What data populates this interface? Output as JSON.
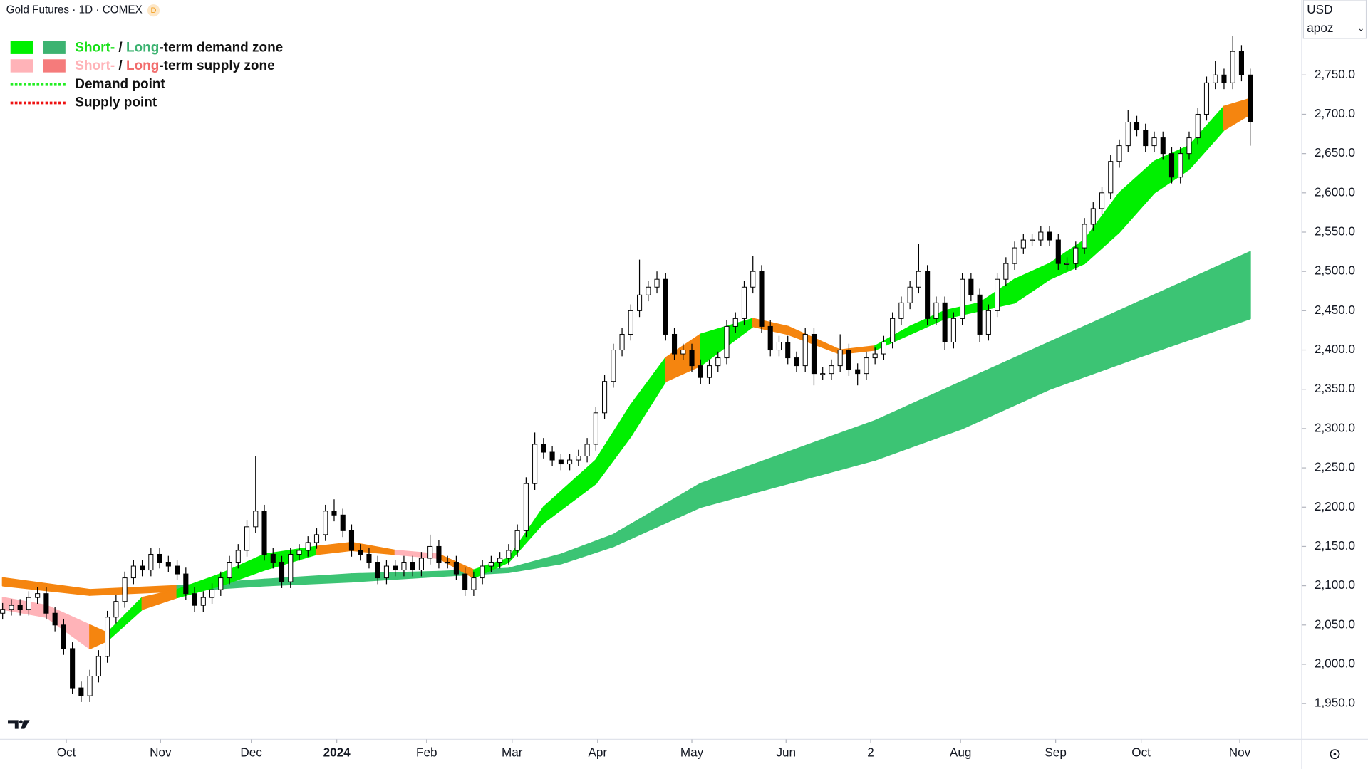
{
  "chart_data": {
    "type": "candlestick",
    "title": "Gold Futures · 1D · COMEX",
    "badge": "D",
    "currency": "USD",
    "scale_menu": "apoz",
    "ylim": [
      1904.5,
      2845.4
    ],
    "yticks": [
      {
        "value": 1950,
        "label": "1,950.0"
      },
      {
        "value": 2000,
        "label": "2,000.0"
      },
      {
        "value": 2050,
        "label": "2,050.0"
      },
      {
        "value": 2100,
        "label": "2,100.0"
      },
      {
        "value": 2150,
        "label": "2,150.0"
      },
      {
        "value": 2200,
        "label": "2,200.0"
      },
      {
        "value": 2250,
        "label": "2,250.0"
      },
      {
        "value": 2300,
        "label": "2,300.0"
      },
      {
        "value": 2350,
        "label": "2,350.0"
      },
      {
        "value": 2400,
        "label": "2,400.0"
      },
      {
        "value": 2450,
        "label": "2,450.0"
      },
      {
        "value": 2500,
        "label": "2,500.0"
      },
      {
        "value": 2550,
        "label": "2,550.0"
      },
      {
        "value": 2600,
        "label": "2,600.0"
      },
      {
        "value": 2650,
        "label": "2,650.0"
      },
      {
        "value": 2700,
        "label": "2,700.0"
      },
      {
        "value": 2750,
        "label": "2,750.0"
      }
    ],
    "xticks": [
      {
        "value": 7.3,
        "label": "Oct"
      },
      {
        "value": 18.1,
        "label": "Nov"
      },
      {
        "value": 28.5,
        "label": "Dec"
      },
      {
        "value": 38.3,
        "label": "2024"
      },
      {
        "value": 48.6,
        "label": "Feb"
      },
      {
        "value": 58.4,
        "label": "Mar"
      },
      {
        "value": 68.2,
        "label": "Apr"
      },
      {
        "value": 79,
        "label": "May"
      },
      {
        "value": 89.8,
        "label": "Jun"
      },
      {
        "value": 99.5,
        "label": "2"
      },
      {
        "value": 109.8,
        "label": "Aug"
      },
      {
        "value": 120.7,
        "label": "Sep"
      },
      {
        "value": 130.5,
        "label": "Oct"
      },
      {
        "value": 141.8,
        "label": "Nov"
      }
    ],
    "up_color": "#ffffff",
    "down_color": "#000000",
    "candles": [
      [
        2065,
        2078,
        2057,
        2070
      ],
      [
        2070,
        2083,
        2062,
        2075
      ],
      [
        2075,
        2083,
        2062,
        2070
      ],
      [
        2070,
        2093,
        2062,
        2085
      ],
      [
        2085,
        2098,
        2077,
        2090
      ],
      [
        2090,
        2098,
        2057,
        2065
      ],
      [
        2065,
        2073,
        2042,
        2050
      ],
      [
        2050,
        2058,
        2012,
        2020
      ],
      [
        2020,
        2028,
        1962,
        1970
      ],
      [
        1970,
        1978,
        1952,
        1960
      ],
      [
        1960,
        1993,
        1952,
        1985
      ],
      [
        1985,
        2018,
        1977,
        2010
      ],
      [
        2010,
        2068,
        2002,
        2060
      ],
      [
        2060,
        2088,
        2052,
        2080
      ],
      [
        2080,
        2118,
        2072,
        2110
      ],
      [
        2110,
        2133,
        2102,
        2125
      ],
      [
        2125,
        2133,
        2112,
        2120
      ],
      [
        2120,
        2148,
        2112,
        2140
      ],
      [
        2140,
        2148,
        2122,
        2130
      ],
      [
        2130,
        2138,
        2117,
        2125
      ],
      [
        2125,
        2133,
        2107,
        2115
      ],
      [
        2115,
        2123,
        2082,
        2090
      ],
      [
        2090,
        2098,
        2067,
        2075
      ],
      [
        2075,
        2093,
        2067,
        2085
      ],
      [
        2085,
        2103,
        2077,
        2095
      ],
      [
        2095,
        2118,
        2087,
        2110
      ],
      [
        2110,
        2138,
        2102,
        2130
      ],
      [
        2130,
        2153,
        2122,
        2145
      ],
      [
        2145,
        2183,
        2137,
        2175
      ],
      [
        2175,
        2265,
        2167,
        2195
      ],
      [
        2195,
        2203,
        2132,
        2140
      ],
      [
        2140,
        2148,
        2122,
        2130
      ],
      [
        2130,
        2138,
        2097,
        2105
      ],
      [
        2105,
        2148,
        2097,
        2140
      ],
      [
        2140,
        2153,
        2132,
        2145
      ],
      [
        2145,
        2163,
        2137,
        2155
      ],
      [
        2155,
        2173,
        2147,
        2165
      ],
      [
        2165,
        2203,
        2157,
        2195
      ],
      [
        2195,
        2210,
        2182,
        2190
      ],
      [
        2190,
        2198,
        2162,
        2170
      ],
      [
        2170,
        2178,
        2137,
        2145
      ],
      [
        2145,
        2153,
        2132,
        2140
      ],
      [
        2140,
        2148,
        2122,
        2130
      ],
      [
        2130,
        2138,
        2102,
        2110
      ],
      [
        2110,
        2133,
        2102,
        2125
      ],
      [
        2125,
        2133,
        2112,
        2120
      ],
      [
        2120,
        2138,
        2112,
        2130
      ],
      [
        2130,
        2138,
        2112,
        2120
      ],
      [
        2120,
        2143,
        2112,
        2135
      ],
      [
        2135,
        2165,
        2127,
        2150
      ],
      [
        2150,
        2158,
        2122,
        2130
      ],
      [
        2130,
        2138,
        2122,
        2130
      ],
      [
        2130,
        2138,
        2107,
        2115
      ],
      [
        2115,
        2123,
        2087,
        2095
      ],
      [
        2095,
        2118,
        2087,
        2110
      ],
      [
        2110,
        2133,
        2102,
        2125
      ],
      [
        2125,
        2138,
        2117,
        2130
      ],
      [
        2130,
        2143,
        2122,
        2135
      ],
      [
        2135,
        2153,
        2127,
        2145
      ],
      [
        2145,
        2178,
        2137,
        2170
      ],
      [
        2170,
        2238,
        2162,
        2230
      ],
      [
        2230,
        2295,
        2222,
        2280
      ],
      [
        2280,
        2288,
        2262,
        2270
      ],
      [
        2270,
        2278,
        2252,
        2260
      ],
      [
        2260,
        2268,
        2247,
        2255
      ],
      [
        2255,
        2268,
        2247,
        2260
      ],
      [
        2260,
        2273,
        2252,
        2265
      ],
      [
        2265,
        2288,
        2257,
        2280
      ],
      [
        2280,
        2328,
        2272,
        2320
      ],
      [
        2320,
        2368,
        2312,
        2360
      ],
      [
        2360,
        2408,
        2352,
        2400
      ],
      [
        2400,
        2428,
        2392,
        2420
      ],
      [
        2420,
        2458,
        2412,
        2450
      ],
      [
        2450,
        2515,
        2442,
        2470
      ],
      [
        2470,
        2488,
        2462,
        2480
      ],
      [
        2480,
        2500,
        2472,
        2490
      ],
      [
        2490,
        2498,
        2412,
        2420
      ],
      [
        2420,
        2428,
        2387,
        2395
      ],
      [
        2395,
        2408,
        2387,
        2400
      ],
      [
        2400,
        2408,
        2372,
        2380
      ],
      [
        2380,
        2388,
        2357,
        2365
      ],
      [
        2365,
        2388,
        2357,
        2380
      ],
      [
        2380,
        2398,
        2372,
        2390
      ],
      [
        2390,
        2438,
        2382,
        2430
      ],
      [
        2430,
        2448,
        2422,
        2440
      ],
      [
        2440,
        2488,
        2432,
        2480
      ],
      [
        2480,
        2520,
        2472,
        2500
      ],
      [
        2500,
        2508,
        2422,
        2430
      ],
      [
        2430,
        2438,
        2392,
        2400
      ],
      [
        2400,
        2418,
        2392,
        2410
      ],
      [
        2410,
        2418,
        2382,
        2390
      ],
      [
        2390,
        2398,
        2372,
        2380
      ],
      [
        2380,
        2428,
        2372,
        2420
      ],
      [
        2420,
        2428,
        2355,
        2370
      ],
      [
        2370,
        2378,
        2362,
        2370
      ],
      [
        2370,
        2388,
        2362,
        2380
      ],
      [
        2380,
        2420,
        2372,
        2400
      ],
      [
        2400,
        2408,
        2367,
        2375
      ],
      [
        2375,
        2383,
        2355,
        2370
      ],
      [
        2370,
        2398,
        2362,
        2390
      ],
      [
        2390,
        2403,
        2382,
        2395
      ],
      [
        2395,
        2418,
        2387,
        2410
      ],
      [
        2410,
        2448,
        2402,
        2440
      ],
      [
        2440,
        2468,
        2432,
        2460
      ],
      [
        2460,
        2488,
        2452,
        2480
      ],
      [
        2480,
        2535,
        2472,
        2500
      ],
      [
        2500,
        2508,
        2432,
        2440
      ],
      [
        2440,
        2468,
        2432,
        2460
      ],
      [
        2460,
        2468,
        2400,
        2410
      ],
      [
        2410,
        2448,
        2402,
        2440
      ],
      [
        2440,
        2498,
        2432,
        2490
      ],
      [
        2490,
        2498,
        2462,
        2470
      ],
      [
        2470,
        2478,
        2410,
        2420
      ],
      [
        2420,
        2458,
        2412,
        2450
      ],
      [
        2450,
        2498,
        2442,
        2490
      ],
      [
        2490,
        2518,
        2482,
        2510
      ],
      [
        2510,
        2538,
        2502,
        2530
      ],
      [
        2530,
        2548,
        2522,
        2540
      ],
      [
        2540,
        2548,
        2532,
        2540
      ],
      [
        2540,
        2558,
        2532,
        2550
      ],
      [
        2550,
        2558,
        2532,
        2540
      ],
      [
        2540,
        2548,
        2502,
        2510
      ],
      [
        2510,
        2518,
        2502,
        2510
      ],
      [
        2510,
        2538,
        2502,
        2530
      ],
      [
        2530,
        2568,
        2522,
        2560
      ],
      [
        2560,
        2588,
        2552,
        2580
      ],
      [
        2580,
        2608,
        2572,
        2600
      ],
      [
        2600,
        2648,
        2592,
        2640
      ],
      [
        2640,
        2668,
        2632,
        2660
      ],
      [
        2660,
        2705,
        2652,
        2690
      ],
      [
        2690,
        2698,
        2672,
        2680
      ],
      [
        2680,
        2688,
        2652,
        2660
      ],
      [
        2660,
        2678,
        2652,
        2670
      ],
      [
        2670,
        2678,
        2642,
        2650
      ],
      [
        2650,
        2658,
        2612,
        2620
      ],
      [
        2620,
        2658,
        2612,
        2650
      ],
      [
        2650,
        2678,
        2642,
        2670
      ],
      [
        2670,
        2708,
        2662,
        2700
      ],
      [
        2700,
        2748,
        2692,
        2740
      ],
      [
        2740,
        2768,
        2732,
        2750
      ],
      [
        2750,
        2758,
        2732,
        2740
      ],
      [
        2740,
        2800,
        2732,
        2780
      ],
      [
        2780,
        2788,
        2742,
        2750
      ],
      [
        2750,
        2758,
        2660,
        2690
      ]
    ],
    "bands": [
      {
        "x": [
          0,
          10,
          20,
          30,
          40,
          50,
          58,
          64,
          70,
          80,
          90,
          100,
          110,
          120,
          130,
          143
        ],
        "upper": [
          2110,
          2095,
          2100,
          2108,
          2115,
          2118,
          2122,
          2140,
          2165,
          2230,
          2270,
          2310,
          2360,
          2410,
          2460,
          2525
        ],
        "lower": [
          2100,
          2088,
          2093,
          2100,
          2105,
          2112,
          2117,
          2128,
          2150,
          2200,
          2230,
          2260,
          2300,
          2350,
          2390,
          2440
        ],
        "segment_colors": [
          "#f5850f",
          "#f5850f",
          "#3cc474",
          "#3cc474",
          "#3cc474",
          "#3cc474",
          "#3cc474",
          "#3cc474",
          "#3cc474",
          "#3cc474",
          "#3cc474",
          "#3cc474",
          "#3cc474",
          "#3cc474",
          "#3cc474"
        ]
      },
      {
        "x": [
          0,
          5,
          10,
          12,
          16,
          20,
          25,
          30,
          36,
          40,
          45,
          50,
          54,
          58,
          62,
          68,
          72,
          76,
          80,
          86,
          90,
          96,
          100,
          104,
          108,
          112,
          116,
          120,
          124,
          128,
          132,
          136,
          140,
          143
        ],
        "upper": [
          2085,
          2075,
          2050,
          2040,
          2085,
          2095,
          2115,
          2140,
          2150,
          2155,
          2145,
          2140,
          2120,
          2135,
          2200,
          2260,
          2330,
          2390,
          2420,
          2440,
          2430,
          2400,
          2405,
          2430,
          2450,
          2460,
          2490,
          2510,
          2540,
          2600,
          2640,
          2660,
          2710,
          2720
        ],
        "lower": [
          2070,
          2060,
          2020,
          2030,
          2070,
          2085,
          2100,
          2120,
          2140,
          2145,
          2140,
          2135,
          2110,
          2130,
          2180,
          2230,
          2290,
          2360,
          2380,
          2430,
          2420,
          2395,
          2400,
          2420,
          2440,
          2450,
          2460,
          2490,
          2510,
          2550,
          2600,
          2630,
          2680,
          2700
        ],
        "segment_colors": [
          "#ffb3b8",
          "#ffb3b8",
          "#f5850f",
          "#00f000",
          "#f5850f",
          "#00f000",
          "#00f000",
          "#00f000",
          "#f5850f",
          "#f5850f",
          "#ffb3b8",
          "#f5850f",
          "#00f000",
          "#00f000",
          "#00f000",
          "#00f000",
          "#00f000",
          "#f5850f",
          "#00f000",
          "#f5850f",
          "#f5850f",
          "#f5850f",
          "#00f000",
          "#00f000",
          "#00f000",
          "#00f000",
          "#00f000",
          "#00f000",
          "#00f000",
          "#00f000",
          "#00f000",
          "#00f000",
          "#f5850f"
        ]
      }
    ],
    "legend": [
      {
        "parts": [
          "Short-",
          " / ",
          "Long",
          "-term demand zone"
        ],
        "part_colors": [
          "#18e018",
          "#111111",
          "#3cb371",
          "#111111"
        ],
        "swatches": [
          "#00f000",
          "#3cb371"
        ]
      },
      {
        "parts": [
          "Short-",
          " / ",
          "Long",
          "-term supply zone"
        ],
        "part_colors": [
          "#ffb3b8",
          "#111111",
          "#f26d6d",
          "#111111"
        ],
        "swatches": [
          "#ffb3b8",
          "#f57b7b"
        ]
      },
      {
        "parts": [
          "Demand point"
        ],
        "part_colors": [
          "#111111"
        ],
        "line": "#22ee22"
      },
      {
        "parts": [
          "Supply point"
        ],
        "part_colors": [
          "#111111"
        ],
        "line": "#ee1111"
      }
    ]
  }
}
